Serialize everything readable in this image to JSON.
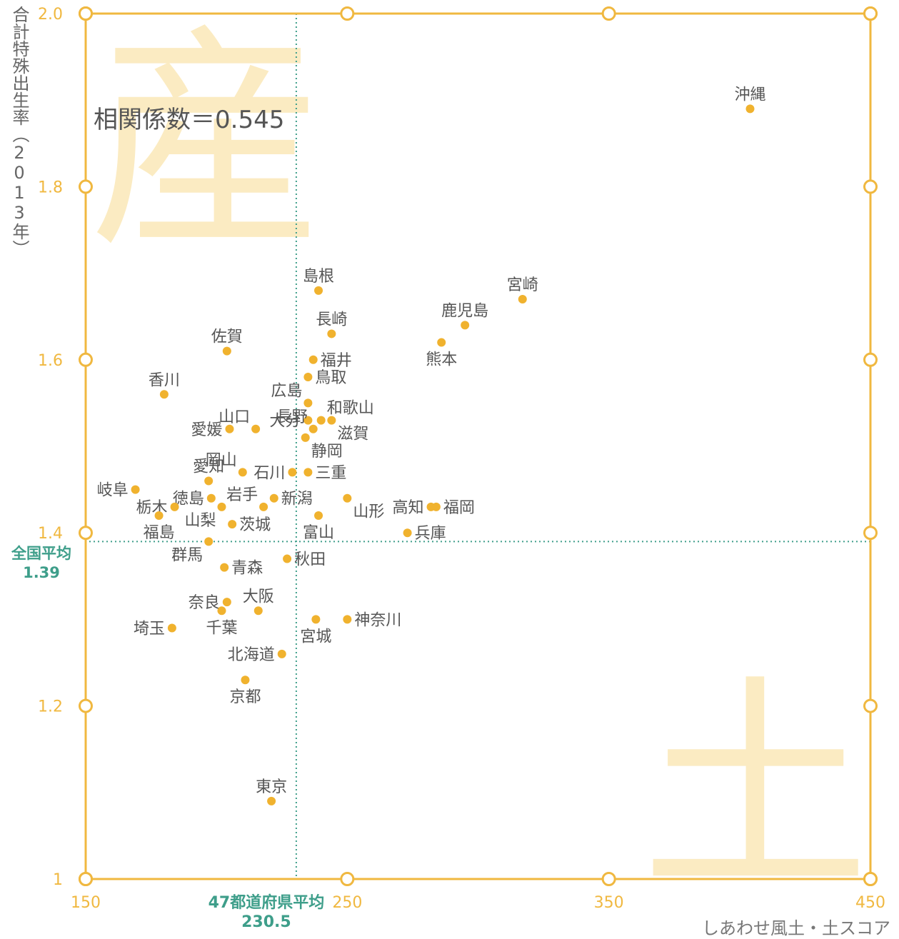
{
  "chart_data": {
    "type": "scatter",
    "title": "",
    "ylabel": "合計特殊出生率（2013年）",
    "xlabel": "しあわせ風土・土スコア",
    "xlim": [
      150,
      450
    ],
    "ylim": [
      1.0,
      2.0
    ],
    "x_ticks": [
      "150",
      "250",
      "350",
      "450"
    ],
    "y_ticks": [
      "1",
      "1.2",
      "1.4",
      "1.6",
      "1.8",
      "2.0"
    ],
    "annotation": "相関係数＝0.545",
    "watermarks": [
      "産",
      "土"
    ],
    "reference_lines": {
      "x": {
        "value": 230.5,
        "label": "47都道府県平均",
        "value_label": "230.5"
      },
      "y": {
        "value": 1.39,
        "label": "全国平均",
        "value_label": "1.39"
      }
    },
    "colors": {
      "axis": "#F0B840",
      "point": "#F0B22E",
      "reference": "#3E9E8A",
      "text": "#555555"
    },
    "points": [
      {
        "name": "沖縄",
        "x": 404,
        "y": 1.89
      },
      {
        "name": "宮崎",
        "x": 317,
        "y": 1.67
      },
      {
        "name": "鹿児島",
        "x": 295,
        "y": 1.64
      },
      {
        "name": "熊本",
        "x": 286,
        "y": 1.62
      },
      {
        "name": "島根",
        "x": 239,
        "y": 1.68
      },
      {
        "name": "長崎",
        "x": 244,
        "y": 1.63
      },
      {
        "name": "佐賀",
        "x": 204,
        "y": 1.61
      },
      {
        "name": "福井",
        "x": 237,
        "y": 1.6
      },
      {
        "name": "鳥取",
        "x": 235,
        "y": 1.58
      },
      {
        "name": "香川",
        "x": 180,
        "y": 1.56
      },
      {
        "name": "広島",
        "x": 235,
        "y": 1.55
      },
      {
        "name": "和歌山",
        "x": 240,
        "y": 1.53
      },
      {
        "name": "大分",
        "x": 235,
        "y": 1.53
      },
      {
        "name": "滋賀",
        "x": 244,
        "y": 1.53
      },
      {
        "name": "山口",
        "x": 215,
        "y": 1.52
      },
      {
        "name": "愛媛",
        "x": 205,
        "y": 1.52
      },
      {
        "name": "長野",
        "x": 237,
        "y": 1.52
      },
      {
        "name": "静岡",
        "x": 234,
        "y": 1.51
      },
      {
        "name": "岡山",
        "x": 210,
        "y": 1.47
      },
      {
        "name": "石川",
        "x": 229,
        "y": 1.47
      },
      {
        "name": "三重",
        "x": 235,
        "y": 1.47
      },
      {
        "name": "愛知",
        "x": 197,
        "y": 1.46
      },
      {
        "name": "岐阜",
        "x": 169,
        "y": 1.45
      },
      {
        "name": "徳島",
        "x": 198,
        "y": 1.44
      },
      {
        "name": "岩手",
        "x": 218,
        "y": 1.43
      },
      {
        "name": "新潟",
        "x": 222,
        "y": 1.44
      },
      {
        "name": "山形",
        "x": 250,
        "y": 1.44
      },
      {
        "name": "富山",
        "x": 239,
        "y": 1.42
      },
      {
        "name": "高知",
        "x": 282,
        "y": 1.43
      },
      {
        "name": "福岡",
        "x": 284,
        "y": 1.43
      },
      {
        "name": "栃木",
        "x": 184,
        "y": 1.43
      },
      {
        "name": "山梨",
        "x": 202,
        "y": 1.43
      },
      {
        "name": "福島",
        "x": 178,
        "y": 1.42
      },
      {
        "name": "茨城",
        "x": 206,
        "y": 1.41
      },
      {
        "name": "兵庫",
        "x": 273,
        "y": 1.4
      },
      {
        "name": "群馬",
        "x": 197,
        "y": 1.39
      },
      {
        "name": "秋田",
        "x": 227,
        "y": 1.37
      },
      {
        "name": "青森",
        "x": 203,
        "y": 1.36
      },
      {
        "name": "奈良",
        "x": 204,
        "y": 1.32
      },
      {
        "name": "大阪",
        "x": 216,
        "y": 1.31
      },
      {
        "name": "千葉",
        "x": 202,
        "y": 1.31
      },
      {
        "name": "埼玉",
        "x": 183,
        "y": 1.29
      },
      {
        "name": "神奈川",
        "x": 250,
        "y": 1.3
      },
      {
        "name": "宮城",
        "x": 238,
        "y": 1.3
      },
      {
        "name": "北海道",
        "x": 225,
        "y": 1.26
      },
      {
        "name": "京都",
        "x": 211,
        "y": 1.23
      },
      {
        "name": "東京",
        "x": 221,
        "y": 1.09
      }
    ]
  }
}
